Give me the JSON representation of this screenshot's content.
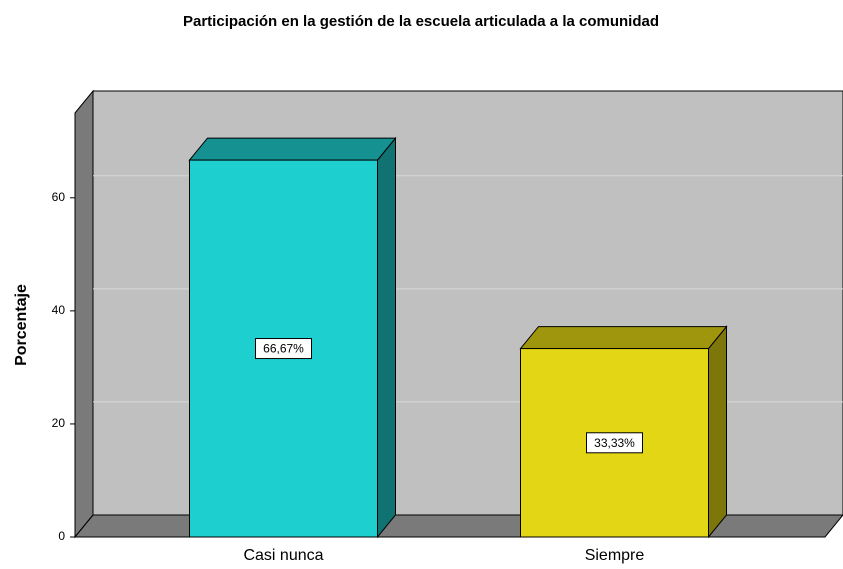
{
  "chart_data": {
    "type": "bar3d",
    "title": "Participación en la gestión de la escuela articulada a la comunidad",
    "y_label": "Porcentaje",
    "categories": [
      "Casi nunca",
      "Siempre"
    ],
    "values": [
      66.67,
      33.33
    ],
    "value_labels": [
      "66,67%",
      "33,33%"
    ],
    "colors": [
      "#1ecfcf",
      "#e3d614"
    ],
    "ylim": [
      0,
      75
    ],
    "yticks": [
      0,
      20,
      40,
      60
    ],
    "grid": true
  }
}
